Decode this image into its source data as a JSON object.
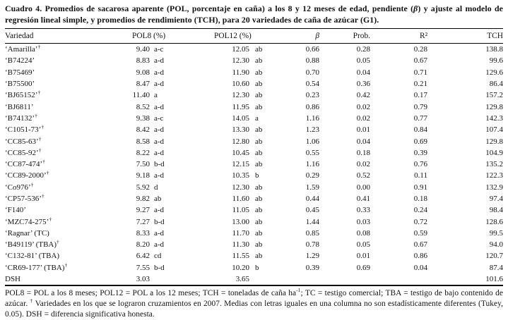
{
  "title": {
    "pre": "Cuadro 4. Promedios de sacarosa aparente (POL, porcentaje en caña) a los 8 y 12 meses de edad, pendiente (",
    "beta": "β",
    "post": ") y ajuste al modelo de regresión lineal simple, y promedios de rendimiento (TCH), para 20 variedades de caña de azúcar (G1)."
  },
  "table": {
    "headers": {
      "variety": "Variedad",
      "pol8": "POL8 (%)",
      "pol12": "POL12 (%)",
      "beta": "β",
      "prob": "Prob.",
      "r2": "R²",
      "tch": "TCH"
    },
    "rows": [
      {
        "name": "‘Amarilla’",
        "sup": "†",
        "pol8": "9.40",
        "pol8g": "a-c",
        "pol12": "12.05",
        "pol12g": "ab",
        "beta": "0.66",
        "prob": "0.28",
        "r2": "0.28",
        "tch": "138.8"
      },
      {
        "name": "‘B74224’",
        "sup": "",
        "pol8": "8.83",
        "pol8g": "a-d",
        "pol12": "12.30",
        "pol12g": "ab",
        "beta": "0.88",
        "prob": "0.05",
        "r2": "0.67",
        "tch": "99.6"
      },
      {
        "name": "‘B75469’",
        "sup": "",
        "pol8": "9.08",
        "pol8g": "a-d",
        "pol12": "11.90",
        "pol12g": "ab",
        "beta": "0.70",
        "prob": "0.04",
        "r2": "0.71",
        "tch": "129.6"
      },
      {
        "name": "‘B75500’",
        "sup": "",
        "pol8": "8.47",
        "pol8g": "a-d",
        "pol12": "10.60",
        "pol12g": "ab",
        "beta": "0.54",
        "prob": "0.36",
        "r2": "0.21",
        "tch": "86.4"
      },
      {
        "name": "‘BJ65152’",
        "sup": "†",
        "pol8": "11.40",
        "pol8g": "a",
        "pol12": "12.30",
        "pol12g": "ab",
        "beta": "0.23",
        "prob": "0.42",
        "r2": "0.17",
        "tch": "157.2"
      },
      {
        "name": "‘BJ6811’",
        "sup": "",
        "pol8": "8.52",
        "pol8g": "a-d",
        "pol12": "11.95",
        "pol12g": "ab",
        "beta": "0.86",
        "prob": "0.02",
        "r2": "0.79",
        "tch": "129.8"
      },
      {
        "name": "‘B74132’",
        "sup": "†",
        "pol8": "9.38",
        "pol8g": "a-c",
        "pol12": "14.05",
        "pol12g": "a",
        "beta": "1.16",
        "prob": "0.02",
        "r2": "0.77",
        "tch": "142.3"
      },
      {
        "name": "‘C1051-73’",
        "sup": "†",
        "pol8": "8.42",
        "pol8g": "a-d",
        "pol12": "13.30",
        "pol12g": "ab",
        "beta": "1.23",
        "prob": "0.01",
        "r2": "0.84",
        "tch": "107.4"
      },
      {
        "name": "‘CC85-63’",
        "sup": "†",
        "pol8": "8.58",
        "pol8g": "a-d",
        "pol12": "12.80",
        "pol12g": "ab",
        "beta": "1.06",
        "prob": "0.04",
        "r2": "0.69",
        "tch": "129.8"
      },
      {
        "name": "‘CC85-92’",
        "sup": "†",
        "pol8": "8.22",
        "pol8g": "a-d",
        "pol12": "10.45",
        "pol12g": "ab",
        "beta": "0.55",
        "prob": "0.18",
        "r2": "0.39",
        "tch": "104.9"
      },
      {
        "name": "‘CC87-474’",
        "sup": "†",
        "pol8": "7.50",
        "pol8g": "b-d",
        "pol12": "12.15",
        "pol12g": "ab",
        "beta": "1.16",
        "prob": "0.02",
        "r2": "0.76",
        "tch": "135.2"
      },
      {
        "name": "‘CC89-2000’",
        "sup": "†",
        "pol8": "9.18",
        "pol8g": "a-d",
        "pol12": "10.35",
        "pol12g": "b",
        "beta": "0.29",
        "prob": "0.52",
        "r2": "0.11",
        "tch": "122.3"
      },
      {
        "name": "‘Co976’",
        "sup": "†",
        "pol8": "5.92",
        "pol8g": "d",
        "pol12": "12.30",
        "pol12g": "ab",
        "beta": "1.59",
        "prob": "0.00",
        "r2": "0.91",
        "tch": "132.9"
      },
      {
        "name": "‘CP57-536’",
        "sup": "†",
        "pol8": "9.82",
        "pol8g": "ab",
        "pol12": "11.60",
        "pol12g": "ab",
        "beta": "0.44",
        "prob": "0.41",
        "r2": "0.18",
        "tch": "97.4"
      },
      {
        "name": "‘F140’",
        "sup": "",
        "pol8": "9.27",
        "pol8g": "a-d",
        "pol12": "11.05",
        "pol12g": "ab",
        "beta": "0.45",
        "prob": "0.33",
        "r2": "0.24",
        "tch": "98.4"
      },
      {
        "name": "‘MZC74-275’",
        "sup": "†",
        "pol8": "7.27",
        "pol8g": "b-d",
        "pol12": "13.00",
        "pol12g": "ab",
        "beta": "1.44",
        "prob": "0.03",
        "r2": "0.72",
        "tch": "128.6"
      },
      {
        "name": "‘Ragnar’ (TC)",
        "sup": "",
        "pol8": "8.33",
        "pol8g": "a-d",
        "pol12": "11.70",
        "pol12g": "ab",
        "beta": "0.85",
        "prob": "0.08",
        "r2": "0.59",
        "tch": "99.5"
      },
      {
        "name": "‘B49119’ (TBA)",
        "sup": "†",
        "pol8": "8.20",
        "pol8g": "a-d",
        "pol12": "11.30",
        "pol12g": "ab",
        "beta": "0.78",
        "prob": "0.05",
        "r2": "0.67",
        "tch": "94.0"
      },
      {
        "name": "‘C132-81’ (TBA)",
        "sup": "",
        "pol8": "6.42",
        "pol8g": "cd",
        "pol12": "11.55",
        "pol12g": "ab",
        "beta": "1.29",
        "prob": "0.01",
        "r2": "0.86",
        "tch": "120.7"
      },
      {
        "name": "‘CR69-177’ (TBA)",
        "sup": "†",
        "pol8": "7.55",
        "pol8g": "b-d",
        "pol12": "10.20",
        "pol12g": "b",
        "beta": "0.39",
        "prob": "0.69",
        "r2": "0.04",
        "tch": "87.4"
      },
      {
        "name": "DSH",
        "sup": "",
        "pol8": "3.03",
        "pol8g": "",
        "pol12": "3.65",
        "pol12g": "",
        "beta": "",
        "prob": "",
        "r2": "",
        "tch": "101.6"
      }
    ]
  },
  "footnote": {
    "p1": "POL8 = POL a los 8 meses; POL12 = POL a los 12 meses; TCH = toneladas de caña ha",
    "s1": "-1",
    "p2": "; TC = testigo comercial; TBA = testigo de bajo contenido de azúcar. ",
    "s2": "†",
    "p3": " Variedades en los que se lograron cruzamientos en 2007. Medias con letras iguales en una columna no son estadísticamente diferentes (Tukey, 0.05). DSH = diferencia significativa honesta."
  }
}
